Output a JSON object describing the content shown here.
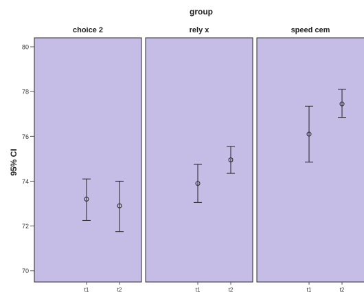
{
  "chart_data": {
    "type": "scatter",
    "chart_kind": "error-bar",
    "facet_title": "group",
    "ylabel": "95% CI",
    "xlabel": "",
    "ylim": [
      69.5,
      80.4
    ],
    "y_ticks": [
      70,
      72,
      74,
      76,
      78,
      80
    ],
    "x_categories": [
      "t1",
      "t2"
    ],
    "grid": false,
    "panel_color": "#c6bde6",
    "panels": [
      {
        "title": "choice 2",
        "points": [
          {
            "x": "t1",
            "mean": 73.2,
            "lower": 72.25,
            "upper": 74.1
          },
          {
            "x": "t2",
            "mean": 72.9,
            "lower": 71.75,
            "upper": 74.0
          }
        ]
      },
      {
        "title": "rely x",
        "points": [
          {
            "x": "t1",
            "mean": 73.9,
            "lower": 73.05,
            "upper": 74.75
          },
          {
            "x": "t2",
            "mean": 74.95,
            "lower": 74.35,
            "upper": 75.55
          }
        ]
      },
      {
        "title": "speed cem",
        "points": [
          {
            "x": "t1",
            "mean": 76.1,
            "lower": 74.85,
            "upper": 77.35
          },
          {
            "x": "t2",
            "mean": 77.45,
            "lower": 76.85,
            "upper": 78.1
          }
        ]
      }
    ]
  }
}
